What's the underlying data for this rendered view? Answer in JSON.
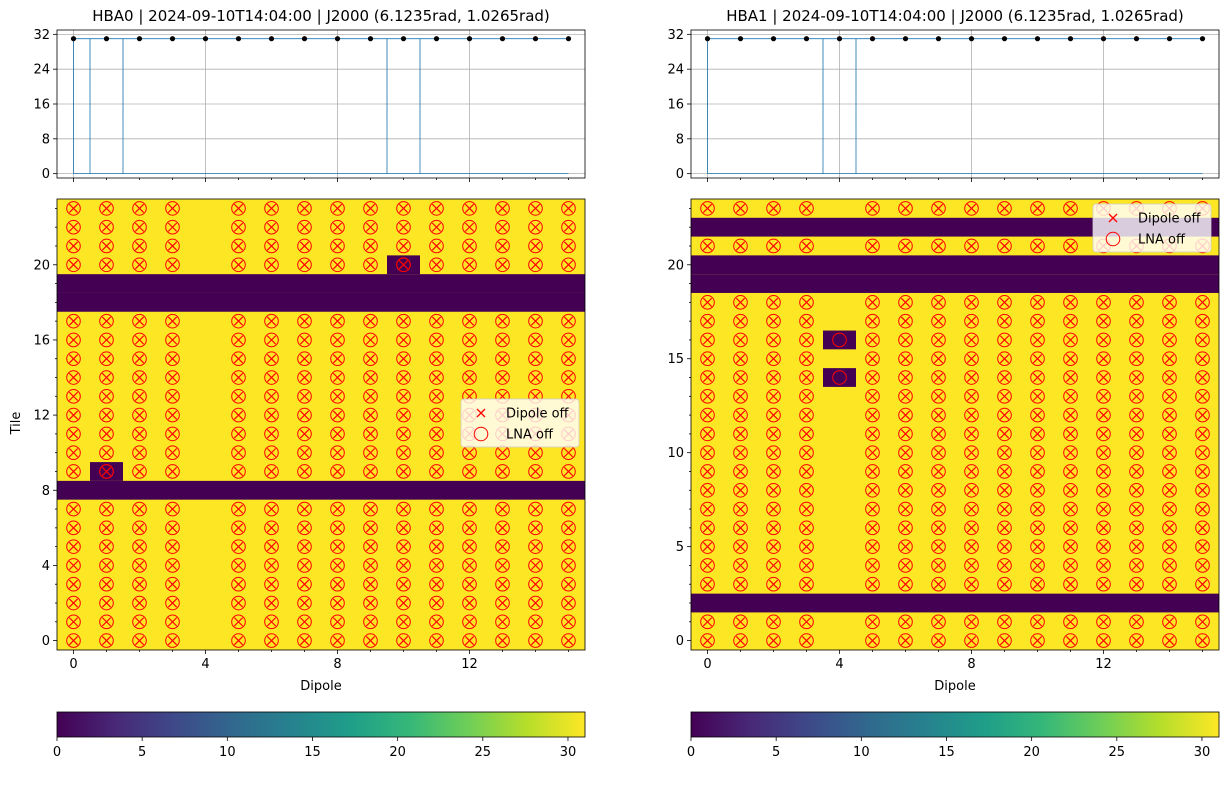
{
  "figure": {
    "colormap": "viridis",
    "colors": {
      "off": "#440154",
      "on": "#fde725",
      "marker": "#ff0000",
      "grid": "#b0b0b0",
      "line": "#1f77b4"
    }
  },
  "chart_data": [
    {
      "id": "hba0",
      "type": "heatmap",
      "title": "HBA0 | 2024-09-10T14:04:00 | J2000 (6.1235rad, 1.0265rad)",
      "xlabel": "Dipole",
      "ylabel": "Tile",
      "xlim": [
        -0.5,
        15.5
      ],
      "ylim": [
        -0.5,
        23.5
      ],
      "xticks": [
        0,
        4,
        8,
        12
      ],
      "yticks": [
        0,
        4,
        8,
        12,
        16,
        20
      ],
      "value_range": [
        0,
        31
      ],
      "off_tiles": [
        8,
        18,
        19
      ],
      "off_cells": [
        [
          9,
          1
        ],
        [
          20,
          10
        ]
      ],
      "blank_dipoles": [
        4
      ],
      "dipole_off_marker_dipoles": [
        0,
        1,
        2,
        3,
        5,
        6,
        7,
        8,
        9,
        10,
        11,
        12,
        13,
        14,
        15
      ],
      "lna_off_marker_dipoles": [
        0,
        1,
        2,
        3,
        5,
        6,
        7,
        8,
        9,
        10,
        11,
        12,
        13,
        14,
        15
      ],
      "marker_tiles": [
        0,
        1,
        2,
        3,
        4,
        5,
        6,
        7,
        9,
        10,
        11,
        12,
        13,
        14,
        15,
        16,
        17,
        20,
        21,
        22,
        23
      ],
      "legend": {
        "labels": [
          "Dipole off",
          "LNA off"
        ],
        "position": "center-right"
      },
      "summary": {
        "type": "line",
        "yticks": [
          0,
          8,
          16,
          24,
          32
        ],
        "ylim": [
          -1,
          33
        ],
        "x": [
          0,
          1,
          2,
          3,
          4,
          5,
          6,
          7,
          8,
          9,
          10,
          11,
          12,
          13,
          14,
          15
        ],
        "values": [
          31,
          31,
          31,
          31,
          31,
          31,
          31,
          31,
          31,
          31,
          31,
          31,
          31,
          31,
          31,
          31
        ],
        "dip_positions": [
          0.5,
          1.5,
          9.5,
          10.5
        ],
        "dip_value": 0
      },
      "colorbar": {
        "range": [
          0,
          31
        ],
        "ticks": [
          0,
          5,
          10,
          15,
          20,
          25,
          30
        ]
      }
    },
    {
      "id": "hba1",
      "type": "heatmap",
      "title": "HBA1 | 2024-09-10T14:04:00 | J2000 (6.1235rad, 1.0265rad)",
      "xlabel": "Dipole",
      "ylabel": "",
      "xlim": [
        -0.5,
        15.5
      ],
      "ylim": [
        -0.5,
        23.5
      ],
      "xticks": [
        0,
        4,
        8,
        12
      ],
      "yticks": [
        0,
        5,
        10,
        15,
        20
      ],
      "value_range": [
        0,
        31
      ],
      "off_tiles": [
        2,
        19,
        20,
        22
      ],
      "off_cells": [
        [
          14,
          4
        ],
        [
          16,
          4
        ]
      ],
      "blank_dipoles": [
        4
      ],
      "dipole_off_marker_dipoles": [
        0,
        1,
        2,
        3,
        5,
        6,
        7,
        8,
        9,
        10,
        11,
        12,
        13,
        14,
        15
      ],
      "lna_off_marker_dipoles": [
        0,
        1,
        2,
        3,
        5,
        6,
        7,
        8,
        9,
        10,
        11,
        12,
        13,
        14,
        15
      ],
      "marker_tiles": [
        0,
        1,
        3,
        4,
        5,
        6,
        7,
        8,
        9,
        10,
        11,
        12,
        13,
        14,
        15,
        16,
        17,
        18,
        21,
        23
      ],
      "legend": {
        "labels": [
          "Dipole off",
          "LNA off"
        ],
        "position": "upper-right"
      },
      "summary": {
        "type": "line",
        "yticks": [
          0,
          8,
          16,
          24,
          32
        ],
        "ylim": [
          -1,
          33
        ],
        "x": [
          0,
          1,
          2,
          3,
          4,
          5,
          6,
          7,
          8,
          9,
          10,
          11,
          12,
          13,
          14,
          15
        ],
        "values": [
          31,
          31,
          31,
          31,
          31,
          31,
          31,
          31,
          31,
          31,
          31,
          31,
          31,
          31,
          31,
          31
        ],
        "dip_positions": [
          3.5,
          4.5
        ],
        "dip_value": 0
      },
      "colorbar": {
        "range": [
          0,
          31
        ],
        "ticks": [
          0,
          5,
          10,
          15,
          20,
          25,
          30
        ]
      }
    }
  ]
}
